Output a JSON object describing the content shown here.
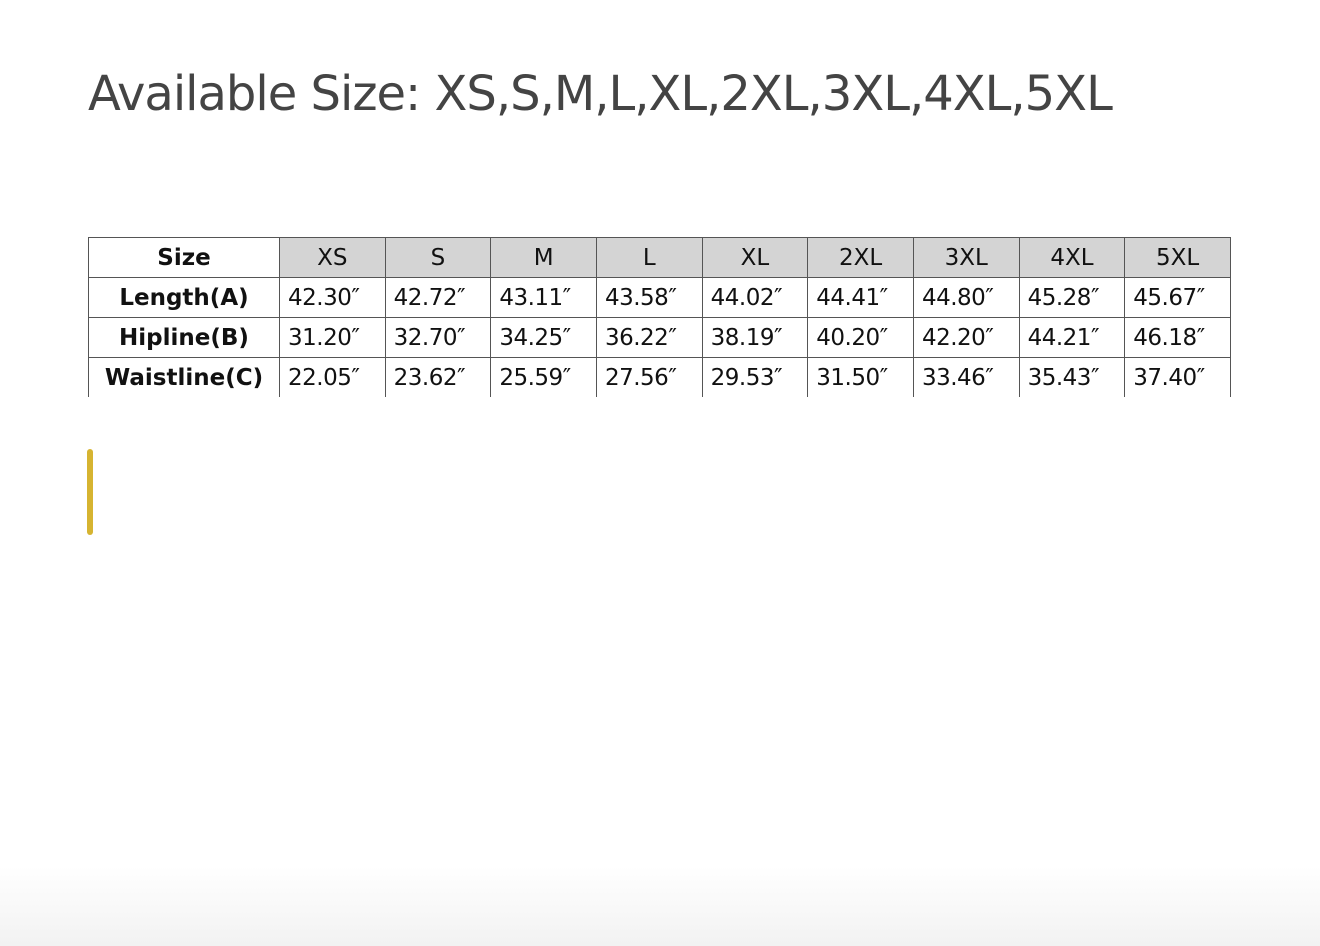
{
  "title": "Available Size: XS,S,M,L,XL,2XL,3XL,4XL,5XL",
  "table": {
    "corner": "Size",
    "columns": [
      "XS",
      "S",
      "M",
      "L",
      "XL",
      "2XL",
      "3XL",
      "4XL",
      "5XL"
    ],
    "rows": [
      {
        "label": "Length(A)",
        "values": [
          "42.30″",
          "42.72″",
          "43.11″",
          "43.58″",
          "44.02″",
          "44.41″",
          "44.80″",
          "45.28″",
          "45.67″"
        ]
      },
      {
        "label": "Hipline(B)",
        "values": [
          "31.20″",
          "32.70″",
          "34.25″",
          "36.22″",
          "38.19″",
          "40.20″",
          "42.20″",
          "44.21″",
          "46.18″"
        ]
      },
      {
        "label": "Waistline(C)",
        "values": [
          "22.05″",
          "23.62″",
          "25.59″",
          "27.56″",
          "29.53″",
          "31.50″",
          "33.46″",
          "35.43″",
          "37.40″"
        ]
      }
    ]
  },
  "colors": {
    "accent_bar": "#d6b431",
    "header_fill": "#d4d4d4"
  }
}
